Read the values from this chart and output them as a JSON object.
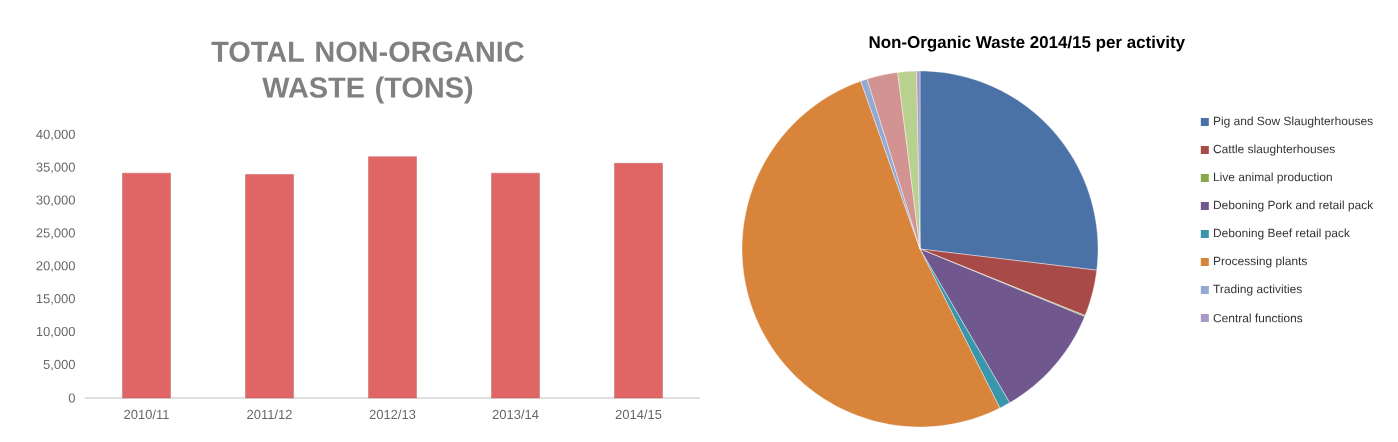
{
  "chart_data": [
    {
      "type": "bar",
      "title": "TOTAL NON-ORGANIC WASTE (TONS)",
      "categories": [
        "2010/11",
        "2011/12",
        "2012/13",
        "2013/14",
        "2014/15"
      ],
      "values": [
        34200,
        34000,
        36700,
        34200,
        35700
      ],
      "color": "#e06666",
      "ylim": [
        0,
        40000
      ],
      "yticks": [
        {
          "value": 0,
          "label": "0"
        },
        {
          "value": 5000,
          "label": "5,000"
        },
        {
          "value": 10000,
          "label": "10,000"
        },
        {
          "value": 15000,
          "label": "15,000"
        },
        {
          "value": 20000,
          "label": "20,000"
        },
        {
          "value": 25000,
          "label": "25,000"
        },
        {
          "value": 30000,
          "label": "30,000"
        },
        {
          "value": 35000,
          "label": "35,000"
        },
        {
          "value": 40000,
          "label": "40,000"
        }
      ]
    },
    {
      "type": "pie",
      "title": "Non-Organic Waste 2014/15 per activity",
      "categories": [
        "Pig and Sow Slaughterhouses",
        "Cattle slaughterhouses",
        "Live animal production",
        "Deboning Pork and retail pack",
        "Deboning Beef retail pack",
        "Processing plants",
        "Trading activities",
        null,
        null,
        "Central functions"
      ],
      "values": [
        26.9,
        4.2,
        0.1,
        10.4,
        1.0,
        52.0,
        0.6,
        2.8,
        1.7,
        0.3
      ],
      "colors": [
        "#4a72a6",
        "#a84b48",
        "#8aa84a",
        "#70588f",
        "#3a97ab",
        "#d9843b",
        "#92a9d3",
        "#d39392",
        "#b9d18f",
        "#a99bc6"
      ],
      "legend": "right"
    }
  ]
}
